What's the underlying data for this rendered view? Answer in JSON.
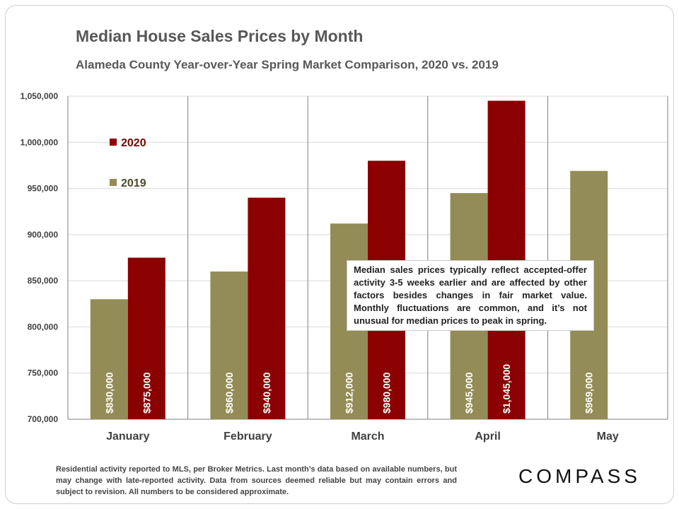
{
  "slide": {
    "title": "Median House Sales Prices by Month",
    "subtitle": "Alameda County Year-over-Year  Spring Market Comparison,  2020 vs. 2019",
    "annotation": "Median sales prices typically reflect accepted-offer activity 3-5 weeks earlier and are affected by other factors besides changes in fair market value. Monthly fluctuations are common, and it’s not unusual for median prices to peak in spring.",
    "footer": "Residential activity reported to MLS, per Broker Metrics. Last month’s data based on available numbers, but may change with late-reported activity. Data from sources deemed reliable but may contain errors and subject to revision. All numbers to be considered approximate.",
    "logo": "COMPASS"
  },
  "chart_data": {
    "type": "bar",
    "title": "Median House Sales Prices by Month",
    "subtitle": "Alameda County Year-over-Year  Spring Market Comparison,  2020 vs. 2019",
    "categories": [
      "January",
      "February",
      "March",
      "April",
      "May"
    ],
    "series": [
      {
        "name": "2019",
        "color": "#948c56",
        "values": [
          830000,
          860000,
          912000,
          945000,
          969000
        ],
        "labels": [
          "$830,000",
          "$860,000",
          "$912,000",
          "$945,000",
          "$969,000"
        ]
      },
      {
        "name": "2020",
        "color": "#8b0000",
        "values": [
          875000,
          940000,
          980000,
          1045000,
          null
        ],
        "labels": [
          "$875,000",
          "$940,000",
          "$980,000",
          "$1,045,000",
          ""
        ]
      }
    ],
    "ylim": [
      700000,
      1050000
    ],
    "yticks": [
      700000,
      750000,
      800000,
      850000,
      900000,
      950000,
      1000000,
      1050000
    ],
    "ytick_labels": [
      "700,000",
      "750,000",
      "800,000",
      "850,000",
      "900,000",
      "950,000",
      "1,000,000",
      "1,050,000"
    ],
    "grid": true,
    "legend": {
      "position": "top-left",
      "order": [
        "2020",
        "2019"
      ]
    }
  }
}
